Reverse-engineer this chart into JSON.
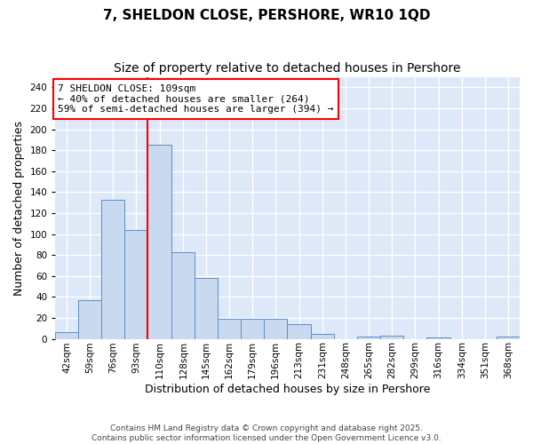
{
  "title1": "7, SHELDON CLOSE, PERSHORE, WR10 1QD",
  "title2": "Size of property relative to detached houses in Pershore",
  "xlabel": "Distribution of detached houses by size in Pershore",
  "ylabel": "Number of detached properties",
  "bar_edges": [
    42,
    59,
    76,
    93,
    110,
    128,
    145,
    162,
    179,
    196,
    213,
    231,
    248,
    265,
    282,
    299,
    316,
    334,
    351,
    368,
    385
  ],
  "bar_heights": [
    6,
    37,
    133,
    104,
    185,
    83,
    58,
    19,
    19,
    19,
    14,
    5,
    0,
    2,
    3,
    0,
    1,
    0,
    0,
    2
  ],
  "bar_color": "#c9d9f0",
  "bar_edge_color": "#5b8fc9",
  "vline_x": 110,
  "vline_color": "red",
  "annotation_text": "7 SHELDON CLOSE: 109sqm\n← 40% of detached houses are smaller (264)\n59% of semi-detached houses are larger (394) →",
  "annotation_box_color": "white",
  "annotation_box_edge_color": "red",
  "ylim": [
    0,
    250
  ],
  "yticks": [
    0,
    20,
    40,
    60,
    80,
    100,
    120,
    140,
    160,
    180,
    200,
    220,
    240
  ],
  "background_color": "#dde8f8",
  "grid_color": "white",
  "footer_text": "Contains HM Land Registry data © Crown copyright and database right 2025.\nContains public sector information licensed under the Open Government Licence v3.0.",
  "title_fontsize": 11,
  "subtitle_fontsize": 10,
  "axis_label_fontsize": 9,
  "tick_fontsize": 7.5,
  "annotation_fontsize": 8
}
